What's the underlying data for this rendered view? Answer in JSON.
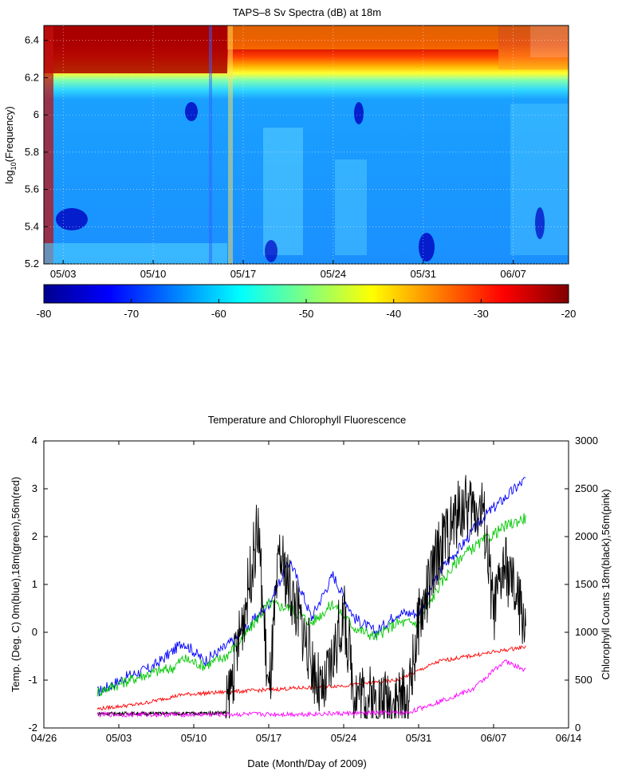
{
  "chart_data": [
    {
      "type": "heatmap",
      "title": "TAPS–8 Sv Spectra (dB) at 18m",
      "ylabel_main": "log",
      "ylabel_sub": "10",
      "ylabel_rest": "(Frequency)",
      "xlabel": "",
      "x_ticks": [
        "05/03",
        "05/10",
        "05/17",
        "05/24",
        "05/31",
        "06/07"
      ],
      "x_tick_days": [
        3,
        10,
        17,
        24,
        31,
        38
      ],
      "xlim_days_since_0501": [
        1.5,
        42.3
      ],
      "y_ticks": [
        "5.2",
        "5.4",
        "5.6",
        "5.8",
        "6",
        "6.2",
        "6.4"
      ],
      "ylim": [
        5.2,
        6.48
      ],
      "colorbar": {
        "ticks": [
          "-80",
          "-70",
          "-60",
          "-50",
          "-40",
          "-30",
          "-20"
        ],
        "range": [
          -80,
          -20
        ]
      },
      "grid": true
    },
    {
      "type": "line",
      "title": "Temperature and Chlorophyll Fluorescence",
      "xlabel": "Date (Month/Day of 2009)",
      "ylabel_left": "Temp. (Deg. C) 0m(blue),18m(green),56m(red)",
      "ylabel_right": "Chlorophyll Counts 18m(black),56m(pink)",
      "x_ticks": [
        "04/26",
        "05/03",
        "05/10",
        "05/17",
        "05/24",
        "05/31",
        "06/07",
        "06/14"
      ],
      "ylim_left": [
        -2,
        4
      ],
      "y_ticks_left": [
        "-2",
        "-1",
        "0",
        "1",
        "2",
        "3",
        "4"
      ],
      "ylim_right": [
        0,
        3000
      ],
      "y_ticks_right": [
        "0",
        "500",
        "1000",
        "1500",
        "2000",
        "2500",
        "3000"
      ],
      "series": [
        {
          "color": "#0000ff",
          "axis": "left",
          "x": [
            "05/01",
            "05/04",
            "05/06",
            "05/08",
            "05/09",
            "05/11",
            "05/13",
            "05/15",
            "05/17",
            "05/19",
            "05/21",
            "05/23",
            "05/25",
            "05/27",
            "05/29",
            "05/31",
            "06/02",
            "06/04",
            "06/06",
            "06/08",
            "06/10"
          ],
          "values": [
            -1.25,
            -0.9,
            -0.75,
            -0.4,
            -0.2,
            -0.6,
            -0.3,
            0.1,
            0.6,
            1.5,
            0.3,
            1.2,
            0.3,
            0.0,
            0.4,
            0.4,
            1.3,
            1.8,
            2.4,
            2.8,
            3.2
          ]
        },
        {
          "color": "#00c800",
          "axis": "left",
          "x": [
            "05/01",
            "05/04",
            "05/06",
            "05/08",
            "05/09",
            "05/11",
            "05/13",
            "05/15",
            "05/17",
            "05/19",
            "05/21",
            "05/23",
            "05/25",
            "05/27",
            "05/29",
            "05/31",
            "06/02",
            "06/04",
            "06/06",
            "06/08",
            "06/10"
          ],
          "values": [
            -1.25,
            -1.0,
            -0.85,
            -0.75,
            -0.55,
            -0.7,
            -0.5,
            0.0,
            0.6,
            0.5,
            0.2,
            0.6,
            0.1,
            -0.1,
            0.2,
            0.2,
            1.0,
            1.6,
            1.9,
            2.2,
            2.4
          ]
        },
        {
          "color": "#ff0000",
          "axis": "left",
          "x": [
            "05/01",
            "05/05",
            "05/09",
            "05/13",
            "05/17",
            "05/21",
            "05/25",
            "05/29",
            "06/02",
            "06/06",
            "06/10"
          ],
          "values": [
            -1.6,
            -1.5,
            -1.3,
            -1.25,
            -1.2,
            -1.15,
            -1.1,
            -1.0,
            -0.6,
            -0.45,
            -0.3
          ]
        },
        {
          "color": "#000000",
          "axis": "right",
          "x": [
            "05/01",
            "05/06",
            "05/10",
            "05/13",
            "05/15",
            "05/16",
            "05/17",
            "05/18",
            "05/20",
            "05/22",
            "05/24",
            "05/25",
            "05/27",
            "05/29",
            "05/30",
            "05/31",
            "06/02",
            "06/04",
            "06/06",
            "06/07",
            "06/08",
            "06/10"
          ],
          "values": [
            150,
            150,
            150,
            160,
            1400,
            2100,
            300,
            1800,
            1100,
            300,
            1200,
            400,
            280,
            300,
            280,
            1100,
            1900,
            2300,
            2300,
            1200,
            1700,
            1100
          ]
        },
        {
          "color": "#ff00ff",
          "axis": "right",
          "x": [
            "05/01",
            "05/10",
            "05/20",
            "05/30",
            "06/02",
            "06/05",
            "06/07",
            "06/08",
            "06/10"
          ],
          "values": [
            140,
            140,
            145,
            160,
            280,
            400,
            600,
            700,
            600
          ]
        }
      ]
    }
  ]
}
